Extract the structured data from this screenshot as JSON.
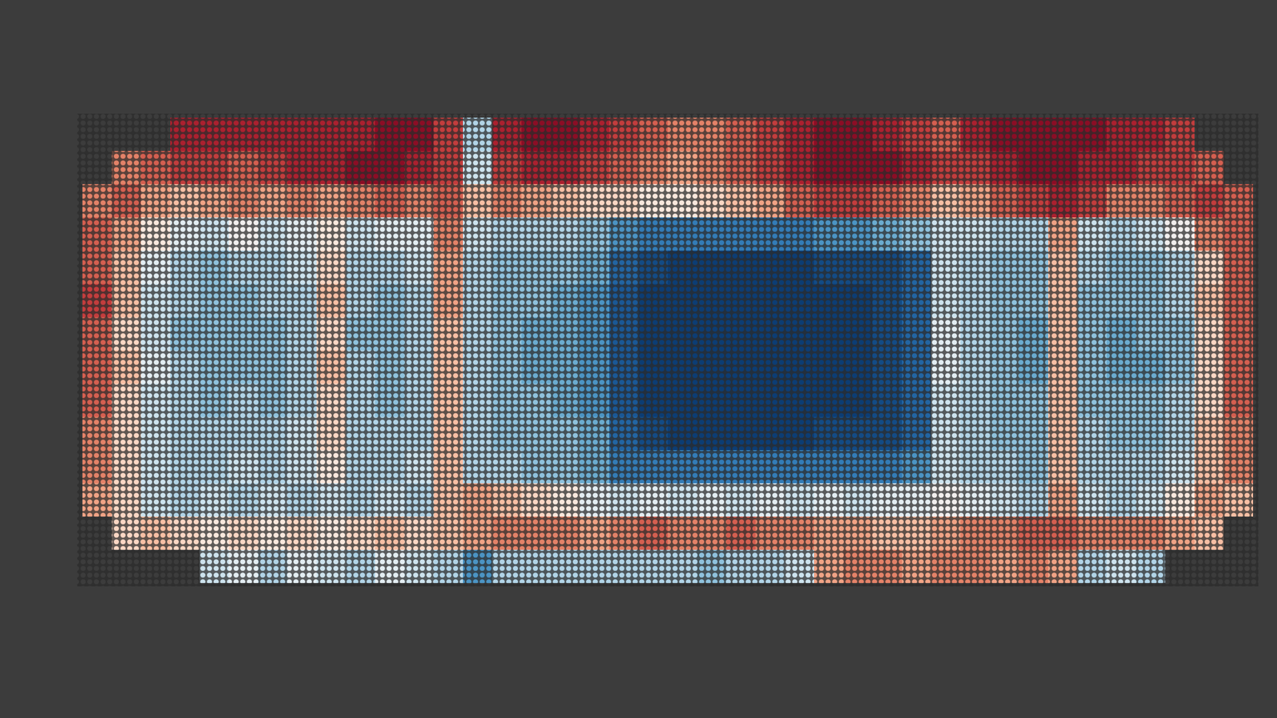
{
  "chart_data": {
    "type": "heatmap",
    "tick_labels": false,
    "color_range": [
      -1,
      1
    ],
    "cells": [
      [
        null,
        null,
        null,
        0.8,
        0.8,
        0.8,
        0.8,
        0.8,
        0.8,
        0.8,
        0.9,
        0.9,
        0.7,
        -0.3,
        0.8,
        0.9,
        0.9,
        0.8,
        0.7,
        0.6,
        0.5,
        0.5,
        0.6,
        0.7,
        0.8,
        0.9,
        0.9,
        0.8,
        0.7,
        0.6,
        0.8,
        0.9,
        0.9,
        0.9,
        0.9,
        0.8,
        0.8,
        0.7,
        null,
        null
      ],
      [
        null,
        0.5,
        0.6,
        0.7,
        0.7,
        0.6,
        0.7,
        0.8,
        0.8,
        0.9,
        0.9,
        0.8,
        0.7,
        -0.2,
        0.7,
        0.8,
        0.8,
        0.7,
        0.6,
        0.5,
        0.4,
        0.5,
        0.6,
        0.7,
        0.8,
        0.9,
        0.9,
        0.9,
        0.8,
        0.7,
        0.7,
        0.8,
        0.9,
        0.9,
        0.8,
        0.8,
        0.7,
        0.7,
        0.6,
        null
      ],
      [
        0.5,
        0.6,
        0.4,
        0.3,
        0.4,
        0.5,
        0.4,
        0.5,
        0.4,
        0.5,
        0.6,
        0.5,
        0.6,
        0.3,
        0.5,
        0.4,
        0.3,
        0.2,
        0.2,
        0.1,
        0.1,
        0.2,
        0.3,
        0.4,
        0.6,
        0.7,
        0.7,
        0.6,
        0.5,
        0.3,
        0.4,
        0.6,
        0.7,
        0.8,
        0.7,
        0.5,
        0.5,
        0.6,
        0.7,
        0.6
      ],
      [
        0.6,
        0.4,
        0.1,
        -0.1,
        -0.2,
        0.0,
        -0.2,
        -0.1,
        0.1,
        -0.2,
        -0.1,
        -0.1,
        0.5,
        -0.2,
        -0.3,
        -0.3,
        -0.3,
        -0.4,
        -0.6,
        -0.7,
        -0.7,
        -0.7,
        -0.7,
        -0.7,
        -0.7,
        -0.6,
        -0.6,
        -0.5,
        -0.4,
        -0.2,
        -0.2,
        -0.3,
        -0.3,
        0.4,
        -0.2,
        -0.3,
        -0.2,
        0.0,
        0.5,
        0.6
      ],
      [
        0.6,
        0.3,
        -0.1,
        -0.3,
        -0.4,
        -0.3,
        -0.3,
        -0.2,
        0.2,
        -0.3,
        -0.3,
        -0.2,
        0.4,
        -0.3,
        -0.4,
        -0.4,
        -0.4,
        -0.5,
        -0.8,
        -0.9,
        -0.95,
        -0.95,
        -0.95,
        -0.95,
        -0.95,
        -0.9,
        -0.9,
        -0.9,
        -0.8,
        -0.2,
        -0.3,
        -0.4,
        -0.4,
        0.3,
        -0.3,
        -0.4,
        -0.4,
        -0.3,
        0.2,
        0.6
      ],
      [
        0.7,
        0.3,
        -0.2,
        -0.3,
        -0.4,
        -0.4,
        -0.3,
        -0.3,
        0.3,
        -0.3,
        -0.4,
        -0.3,
        0.4,
        -0.3,
        -0.4,
        -0.4,
        -0.5,
        -0.6,
        -0.85,
        -0.95,
        -0.95,
        -0.95,
        -0.95,
        -0.95,
        -0.95,
        -0.95,
        -0.95,
        -0.9,
        -0.8,
        -0.2,
        -0.3,
        -0.4,
        -0.4,
        0.3,
        -0.4,
        -0.4,
        -0.4,
        -0.3,
        0.3,
        0.6
      ],
      [
        0.6,
        0.2,
        -0.2,
        -0.4,
        -0.4,
        -0.4,
        -0.4,
        -0.3,
        0.2,
        -0.4,
        -0.4,
        -0.3,
        0.3,
        -0.3,
        -0.4,
        -0.5,
        -0.5,
        -0.6,
        -0.85,
        -0.95,
        -0.95,
        -0.95,
        -0.95,
        -0.95,
        -0.95,
        -0.95,
        -0.95,
        -0.9,
        -0.8,
        -0.1,
        -0.3,
        -0.4,
        -0.5,
        0.3,
        -0.4,
        -0.5,
        -0.4,
        -0.4,
        0.2,
        0.6
      ],
      [
        0.6,
        0.3,
        -0.1,
        -0.3,
        -0.4,
        -0.4,
        -0.4,
        -0.3,
        0.3,
        -0.3,
        -0.4,
        -0.3,
        0.3,
        -0.3,
        -0.4,
        -0.5,
        -0.5,
        -0.6,
        -0.85,
        -0.95,
        -0.95,
        -0.95,
        -0.95,
        -0.95,
        -0.95,
        -0.95,
        -0.95,
        -0.9,
        -0.8,
        -0.1,
        -0.3,
        -0.4,
        -0.5,
        0.3,
        -0.4,
        -0.5,
        -0.5,
        -0.4,
        0.2,
        0.6
      ],
      [
        0.6,
        0.2,
        -0.2,
        -0.3,
        -0.4,
        -0.3,
        -0.4,
        -0.3,
        0.2,
        -0.3,
        -0.4,
        -0.3,
        0.3,
        -0.3,
        -0.4,
        -0.4,
        -0.5,
        -0.6,
        -0.85,
        -0.95,
        -0.95,
        -0.95,
        -0.95,
        -0.95,
        -0.95,
        -0.95,
        -0.95,
        -0.9,
        -0.8,
        -0.2,
        -0.3,
        -0.4,
        -0.4,
        0.3,
        -0.4,
        -0.4,
        -0.4,
        -0.3,
        0.2,
        0.6
      ],
      [
        0.5,
        0.2,
        -0.2,
        -0.3,
        -0.3,
        -0.3,
        -0.3,
        -0.2,
        0.2,
        -0.3,
        -0.3,
        -0.3,
        0.3,
        -0.3,
        -0.4,
        -0.4,
        -0.4,
        -0.5,
        -0.8,
        -0.9,
        -0.95,
        -0.95,
        -0.95,
        -0.95,
        -0.95,
        -0.9,
        -0.9,
        -0.9,
        -0.8,
        -0.2,
        -0.3,
        -0.4,
        -0.4,
        0.3,
        -0.3,
        -0.4,
        -0.4,
        -0.3,
        0.3,
        0.5
      ],
      [
        0.5,
        0.2,
        -0.2,
        -0.3,
        -0.3,
        -0.2,
        -0.3,
        -0.2,
        0.1,
        -0.3,
        -0.3,
        -0.2,
        0.3,
        -0.3,
        -0.3,
        -0.4,
        -0.4,
        -0.5,
        -0.7,
        -0.7,
        -0.7,
        -0.7,
        -0.7,
        -0.7,
        -0.7,
        -0.7,
        -0.7,
        -0.7,
        -0.6,
        -0.2,
        -0.3,
        -0.3,
        -0.4,
        0.3,
        -0.3,
        -0.3,
        -0.3,
        -0.2,
        0.3,
        0.5
      ],
      [
        0.4,
        0.2,
        -0.2,
        -0.3,
        -0.2,
        -0.3,
        -0.2,
        -0.3,
        -0.2,
        -0.3,
        -0.2,
        -0.3,
        0.3,
        0.4,
        0.3,
        0.2,
        0.1,
        -0.1,
        -0.2,
        -0.1,
        -0.2,
        -0.1,
        -0.2,
        -0.1,
        -0.2,
        -0.1,
        -0.2,
        -0.1,
        -0.1,
        0.0,
        -0.1,
        -0.2,
        -0.3,
        0.4,
        -0.2,
        -0.3,
        -0.2,
        0.1,
        0.4,
        0.3
      ],
      [
        null,
        0.2,
        0.3,
        0.2,
        0.1,
        0.2,
        0.1,
        0.2,
        0.1,
        0.2,
        0.3,
        0.2,
        0.3,
        0.4,
        0.5,
        0.5,
        0.5,
        0.4,
        0.5,
        0.6,
        0.5,
        0.5,
        0.6,
        0.5,
        0.5,
        0.4,
        0.4,
        0.3,
        0.3,
        0.4,
        0.5,
        0.5,
        0.6,
        0.6,
        0.5,
        0.5,
        0.5,
        0.4,
        0.3,
        null
      ],
      [
        null,
        null,
        null,
        null,
        -0.2,
        -0.1,
        -0.3,
        -0.1,
        -0.2,
        -0.3,
        -0.1,
        -0.2,
        -0.3,
        -0.6,
        -0.3,
        -0.3,
        -0.3,
        -0.3,
        -0.3,
        -0.3,
        -0.3,
        -0.4,
        -0.3,
        -0.3,
        -0.2,
        0.4,
        0.5,
        0.5,
        0.4,
        0.5,
        0.5,
        0.4,
        0.5,
        0.4,
        -0.3,
        -0.2,
        -0.3,
        null,
        null,
        null
      ]
    ]
  }
}
